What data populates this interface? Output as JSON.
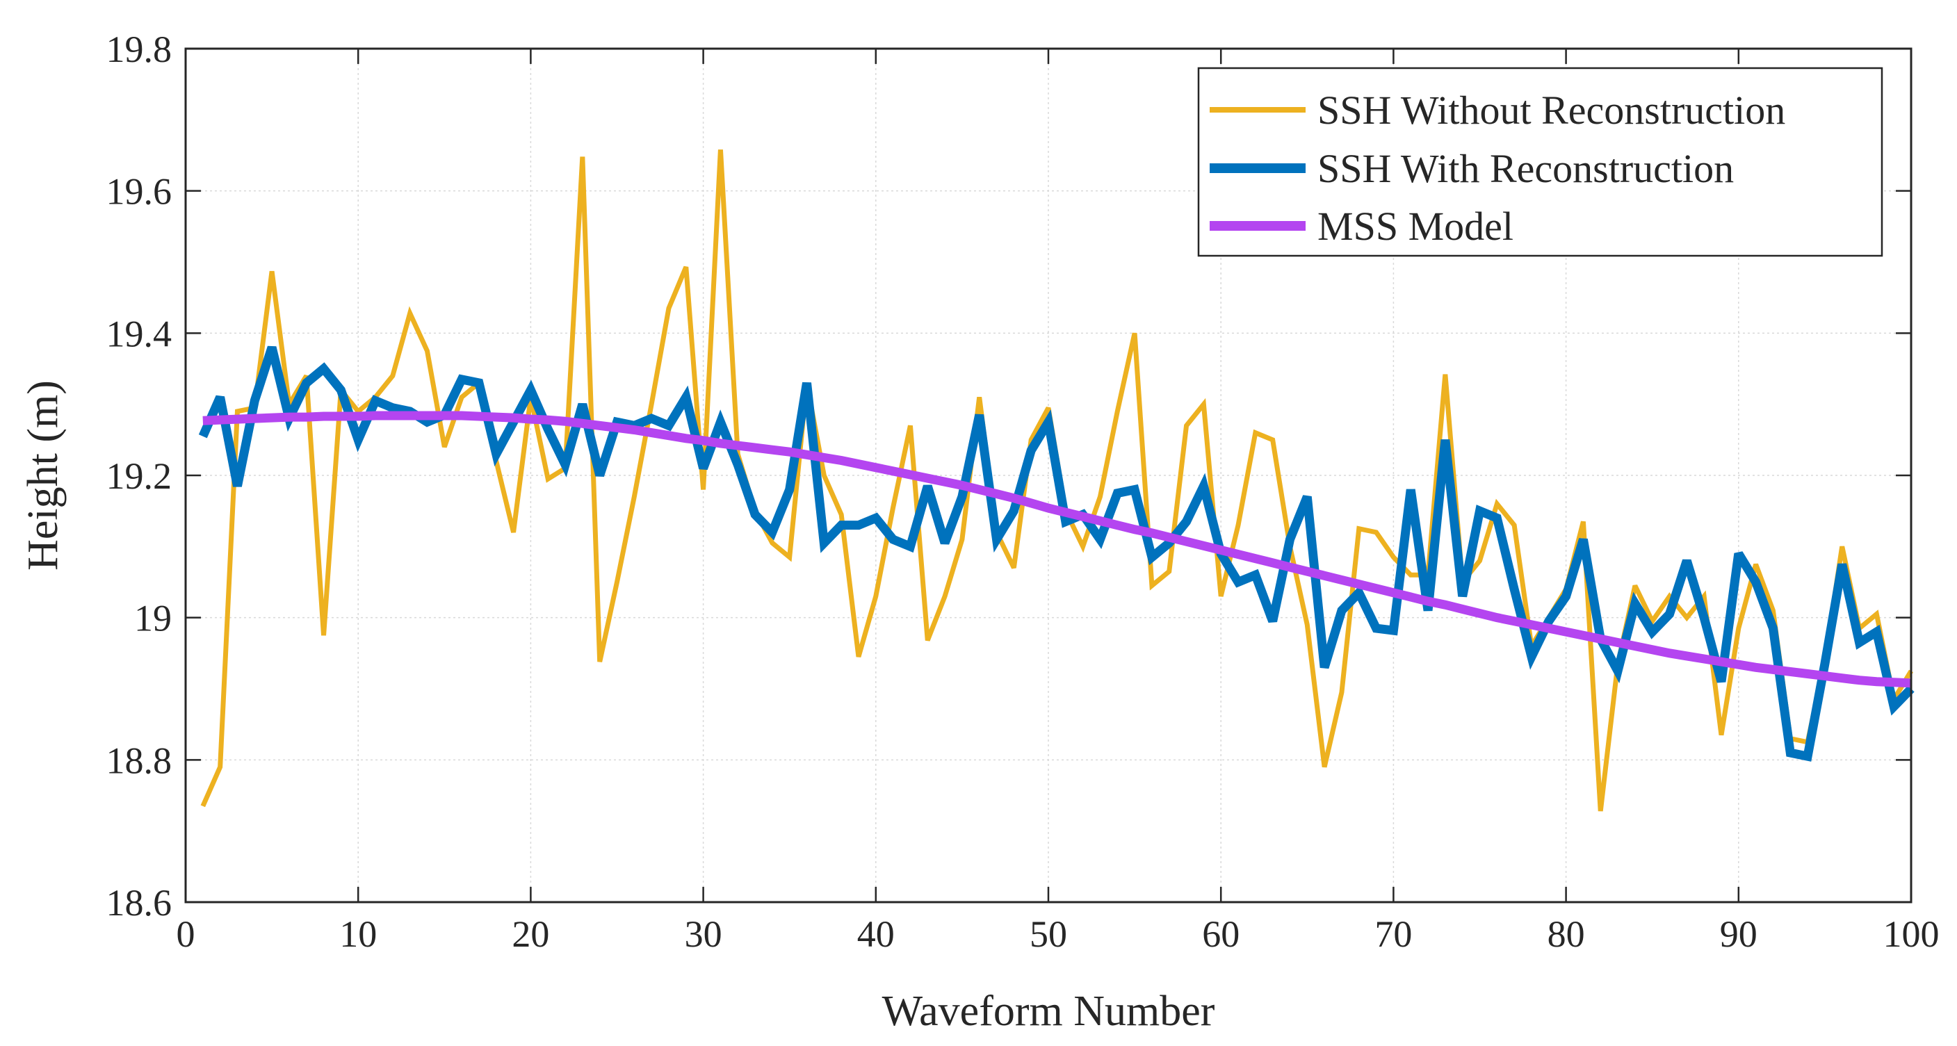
{
  "chart_data": {
    "type": "line",
    "title": "",
    "xlabel": "Waveform Number",
    "ylabel": "Height (m)",
    "xlim": [
      0,
      100
    ],
    "ylim": [
      18.6,
      19.8
    ],
    "xticks": [
      0,
      10,
      20,
      30,
      40,
      50,
      60,
      70,
      80,
      90,
      100
    ],
    "yticks": [
      18.6,
      18.8,
      19,
      19.2,
      19.4,
      19.6,
      19.8
    ],
    "xtick_labels": [
      "0",
      "10",
      "20",
      "30",
      "40",
      "50",
      "60",
      "70",
      "80",
      "90",
      "100"
    ],
    "ytick_labels": [
      "18.6",
      "18.8",
      "19",
      "19.2",
      "19.4",
      "19.6",
      "19.8"
    ],
    "grid": true,
    "legend_position": "top-right",
    "series": [
      {
        "name": "SSH Without Reconstruction",
        "color": "#EDB120",
        "line_weight": "medium",
        "x_start": 1,
        "values": [
          18.735,
          18.79,
          19.29,
          19.295,
          19.487,
          19.3,
          19.34,
          18.975,
          19.32,
          19.29,
          19.31,
          19.34,
          19.428,
          19.375,
          19.24,
          19.31,
          19.33,
          19.22,
          19.12,
          19.31,
          19.195,
          19.21,
          19.648,
          18.938,
          19.05,
          19.17,
          19.3,
          19.435,
          19.493,
          19.18,
          19.658,
          19.23,
          19.15,
          19.105,
          19.085,
          19.33,
          19.2,
          19.145,
          18.945,
          19.03,
          19.155,
          19.27,
          18.968,
          19.03,
          19.11,
          19.31,
          19.12,
          19.07,
          19.25,
          19.295,
          19.15,
          19.1,
          19.17,
          19.29,
          19.4,
          19.045,
          19.065,
          19.27,
          19.3,
          19.03,
          19.13,
          19.26,
          19.25,
          19.1,
          18.99,
          18.79,
          18.895,
          19.125,
          19.12,
          19.085,
          19.06,
          19.06,
          19.342,
          19.05,
          19.08,
          19.16,
          19.13,
          18.96,
          19.0,
          19.04,
          19.135,
          18.728,
          18.935,
          19.045,
          18.995,
          19.03,
          19.0,
          19.03,
          18.835,
          18.985,
          19.075,
          19.01,
          18.83,
          18.825,
          18.94,
          19.1,
          18.985,
          19.005,
          18.885,
          18.925
        ]
      },
      {
        "name": "SSH With Reconstruction",
        "color": "#0072BD",
        "line_weight": "thick",
        "x_start": 1,
        "values": [
          19.255,
          19.31,
          19.185,
          19.305,
          19.38,
          19.28,
          19.33,
          19.35,
          19.32,
          19.25,
          19.305,
          19.295,
          19.29,
          19.275,
          19.285,
          19.335,
          19.33,
          19.23,
          19.275,
          19.32,
          19.265,
          19.215,
          19.3,
          19.2,
          19.275,
          19.27,
          19.28,
          19.27,
          19.31,
          19.21,
          19.275,
          19.215,
          19.145,
          19.12,
          19.18,
          19.33,
          19.105,
          19.13,
          19.13,
          19.14,
          19.11,
          19.1,
          19.185,
          19.105,
          19.17,
          19.285,
          19.11,
          19.15,
          19.235,
          19.275,
          19.135,
          19.145,
          19.11,
          19.175,
          19.18,
          19.085,
          19.105,
          19.135,
          19.185,
          19.09,
          19.05,
          19.06,
          18.995,
          19.11,
          19.17,
          18.93,
          19.01,
          19.035,
          18.985,
          18.982,
          19.18,
          19.01,
          19.25,
          19.03,
          19.15,
          19.14,
          19.04,
          18.945,
          18.995,
          19.03,
          19.11,
          18.97,
          18.925,
          19.02,
          18.98,
          19.005,
          19.08,
          19.0,
          18.91,
          19.09,
          19.05,
          18.985,
          18.81,
          18.805,
          18.935,
          19.075,
          18.965,
          18.98,
          18.875,
          18.9
        ]
      },
      {
        "name": "MSS Model",
        "color": "#B445F0",
        "line_weight": "thick",
        "x_start": 1,
        "values": [
          19.277,
          19.278,
          19.279,
          19.28,
          19.281,
          19.282,
          19.282,
          19.283,
          19.283,
          19.283,
          19.284,
          19.284,
          19.284,
          19.284,
          19.284,
          19.284,
          19.283,
          19.282,
          19.281,
          19.279,
          19.278,
          19.276,
          19.273,
          19.27,
          19.267,
          19.264,
          19.26,
          19.256,
          19.252,
          19.249,
          19.245,
          19.242,
          19.239,
          19.236,
          19.233,
          19.229,
          19.225,
          19.221,
          19.216,
          19.211,
          19.206,
          19.201,
          19.196,
          19.191,
          19.186,
          19.18,
          19.174,
          19.168,
          19.161,
          19.154,
          19.148,
          19.142,
          19.136,
          19.13,
          19.124,
          19.119,
          19.113,
          19.107,
          19.101,
          19.095,
          19.089,
          19.083,
          19.077,
          19.071,
          19.065,
          19.059,
          19.053,
          19.047,
          19.041,
          19.035,
          19.029,
          19.023,
          19.018,
          19.012,
          19.006,
          19.0,
          18.995,
          18.99,
          18.985,
          18.98,
          18.975,
          18.97,
          18.965,
          18.96,
          18.955,
          18.95,
          18.946,
          18.942,
          18.938,
          18.934,
          18.93,
          18.927,
          18.924,
          18.921,
          18.918,
          18.915,
          18.912,
          18.91,
          18.909,
          18.908
        ]
      }
    ]
  }
}
